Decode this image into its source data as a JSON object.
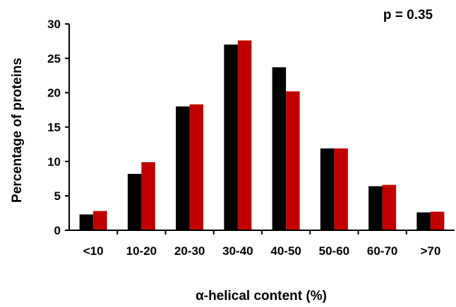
{
  "chart_data": {
    "type": "bar",
    "title": "",
    "annotation": "p = 0.35",
    "xlabel": "α-helical content (%)",
    "ylabel": "Percentage of proteins",
    "categories": [
      "<10",
      "10-20",
      "20-30",
      "30-40",
      "40-50",
      "50-60",
      "60-70",
      ">70"
    ],
    "series": [
      {
        "color": "#000000",
        "values": [
          2.3,
          8.2,
          18.0,
          27.0,
          23.7,
          11.9,
          6.4,
          2.6
        ]
      },
      {
        "color": "#c00000",
        "values": [
          2.8,
          9.9,
          18.3,
          27.6,
          20.2,
          11.9,
          6.6,
          2.7
        ]
      }
    ],
    "ylim": [
      0,
      30
    ],
    "yticks": [
      0,
      5,
      10,
      15,
      20,
      25,
      30
    ],
    "grid": false,
    "legend": false
  }
}
